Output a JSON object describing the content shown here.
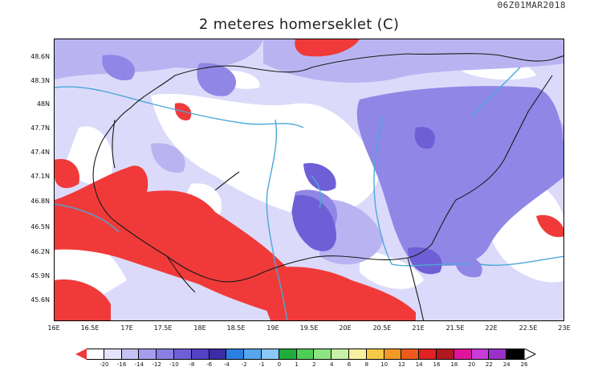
{
  "timestamp": "06Z01MAR2018",
  "title": "2 meteres homerseklet (C)",
  "map": {
    "lat_labels": [
      "48.6N",
      "48.3N",
      "48N",
      "47.7N",
      "47.4N",
      "47.1N",
      "46.8N",
      "46.5N",
      "46.2N",
      "45.9N",
      "45.6N"
    ],
    "lon_labels": [
      "16E",
      "16.5E",
      "17E",
      "17.5E",
      "18E",
      "18.5E",
      "19E",
      "19.5E",
      "20E",
      "20.5E",
      "21E",
      "21.5E",
      "22E",
      "22.5E",
      "23E"
    ],
    "colors": {
      "deep_purple": "#6f5fd6",
      "mid_purple": "#8f86e6",
      "light_purple": "#b9b4f1",
      "very_light": "#dcdafa",
      "white": "#ffffff",
      "red": "#f03a3a",
      "river": "#4aa8d8",
      "border": "#1a1a1a"
    }
  },
  "colorbar": {
    "labels": [
      "-20",
      "-16",
      "-14",
      "-12",
      "-10",
      "-8",
      "-6",
      "-4",
      "-2",
      "-1",
      "0",
      "1",
      "2",
      "4",
      "6",
      "8",
      "10",
      "12",
      "14",
      "16",
      "18",
      "20",
      "22",
      "24",
      "26"
    ],
    "colors": [
      "#ffffff",
      "#e5e3fb",
      "#c6c2f4",
      "#a59ded",
      "#8a80e4",
      "#6f5fd6",
      "#5342c4",
      "#3c2ca8",
      "#2b7fe0",
      "#55a5ef",
      "#8ac8f8",
      "#1fae3b",
      "#4fce57",
      "#8ce37f",
      "#c8f0a6",
      "#f7f0a0",
      "#f5c94a",
      "#f39a25",
      "#ec5a1c",
      "#e02222",
      "#b01820",
      "#e0149a",
      "#c83cd8",
      "#9a30c8",
      "#000000"
    ],
    "left_arrow_color": "#f03a3a",
    "right_arrow_color": "#ffffff"
  }
}
